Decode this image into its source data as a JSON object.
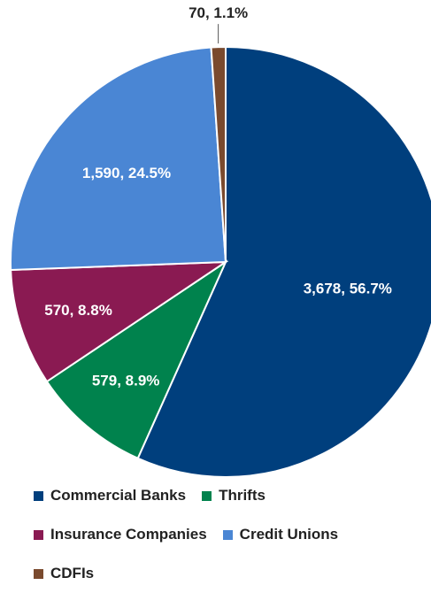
{
  "chart_data": {
    "type": "pie",
    "title": "",
    "slices": [
      {
        "name": "Commercial Banks",
        "value": 3678,
        "label": "3,678, 56.7%",
        "color": "#003f7d"
      },
      {
        "name": "Thrifts",
        "value": 579,
        "label": "579, 8.9%",
        "color": "#00824d"
      },
      {
        "name": "Insurance Companies",
        "value": 570,
        "label": "570, 8.8%",
        "color": "#8a1a52"
      },
      {
        "name": "Credit Unions",
        "value": 1590,
        "label": "1,590, 24.5%",
        "color": "#4a86d4"
      },
      {
        "name": "CDFIs",
        "value": 70,
        "label": "70, 1.1%",
        "color": "#7a4a2e"
      }
    ],
    "legend_placement": "bottom"
  }
}
